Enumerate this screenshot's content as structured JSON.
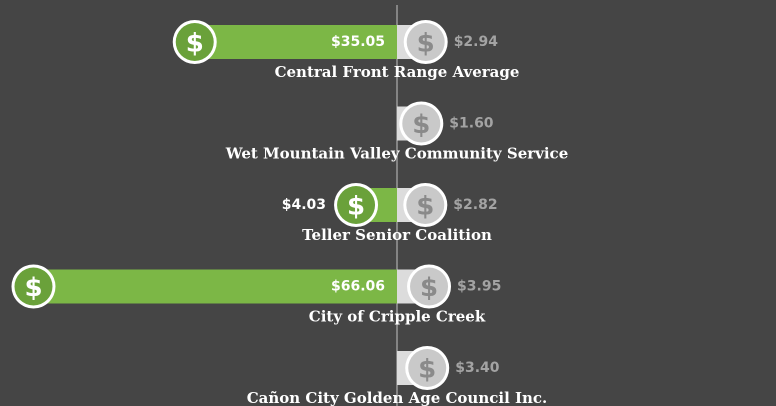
{
  "chart_data": {
    "type": "diverging-bar",
    "categories": [
      "Central Front Range Average",
      "Wet Mountain Valley Community Service",
      "Teller Senior Coalition",
      "City of Cripple Creek",
      "Cañon City Golden Age Council Inc."
    ],
    "series": [
      {
        "color": "#7cb746",
        "values": [
          35.05,
          null,
          4.03,
          66.06,
          null
        ],
        "value_labels": [
          "$35.05",
          null,
          "$4.03",
          "$66.06",
          null
        ]
      },
      {
        "color": "#dcdcdc",
        "values": [
          2.94,
          1.6,
          2.82,
          3.95,
          3.4
        ],
        "value_labels": [
          "$2.94",
          "$1.60",
          "$2.82",
          "$3.95",
          "$3.40"
        ]
      }
    ]
  }
}
